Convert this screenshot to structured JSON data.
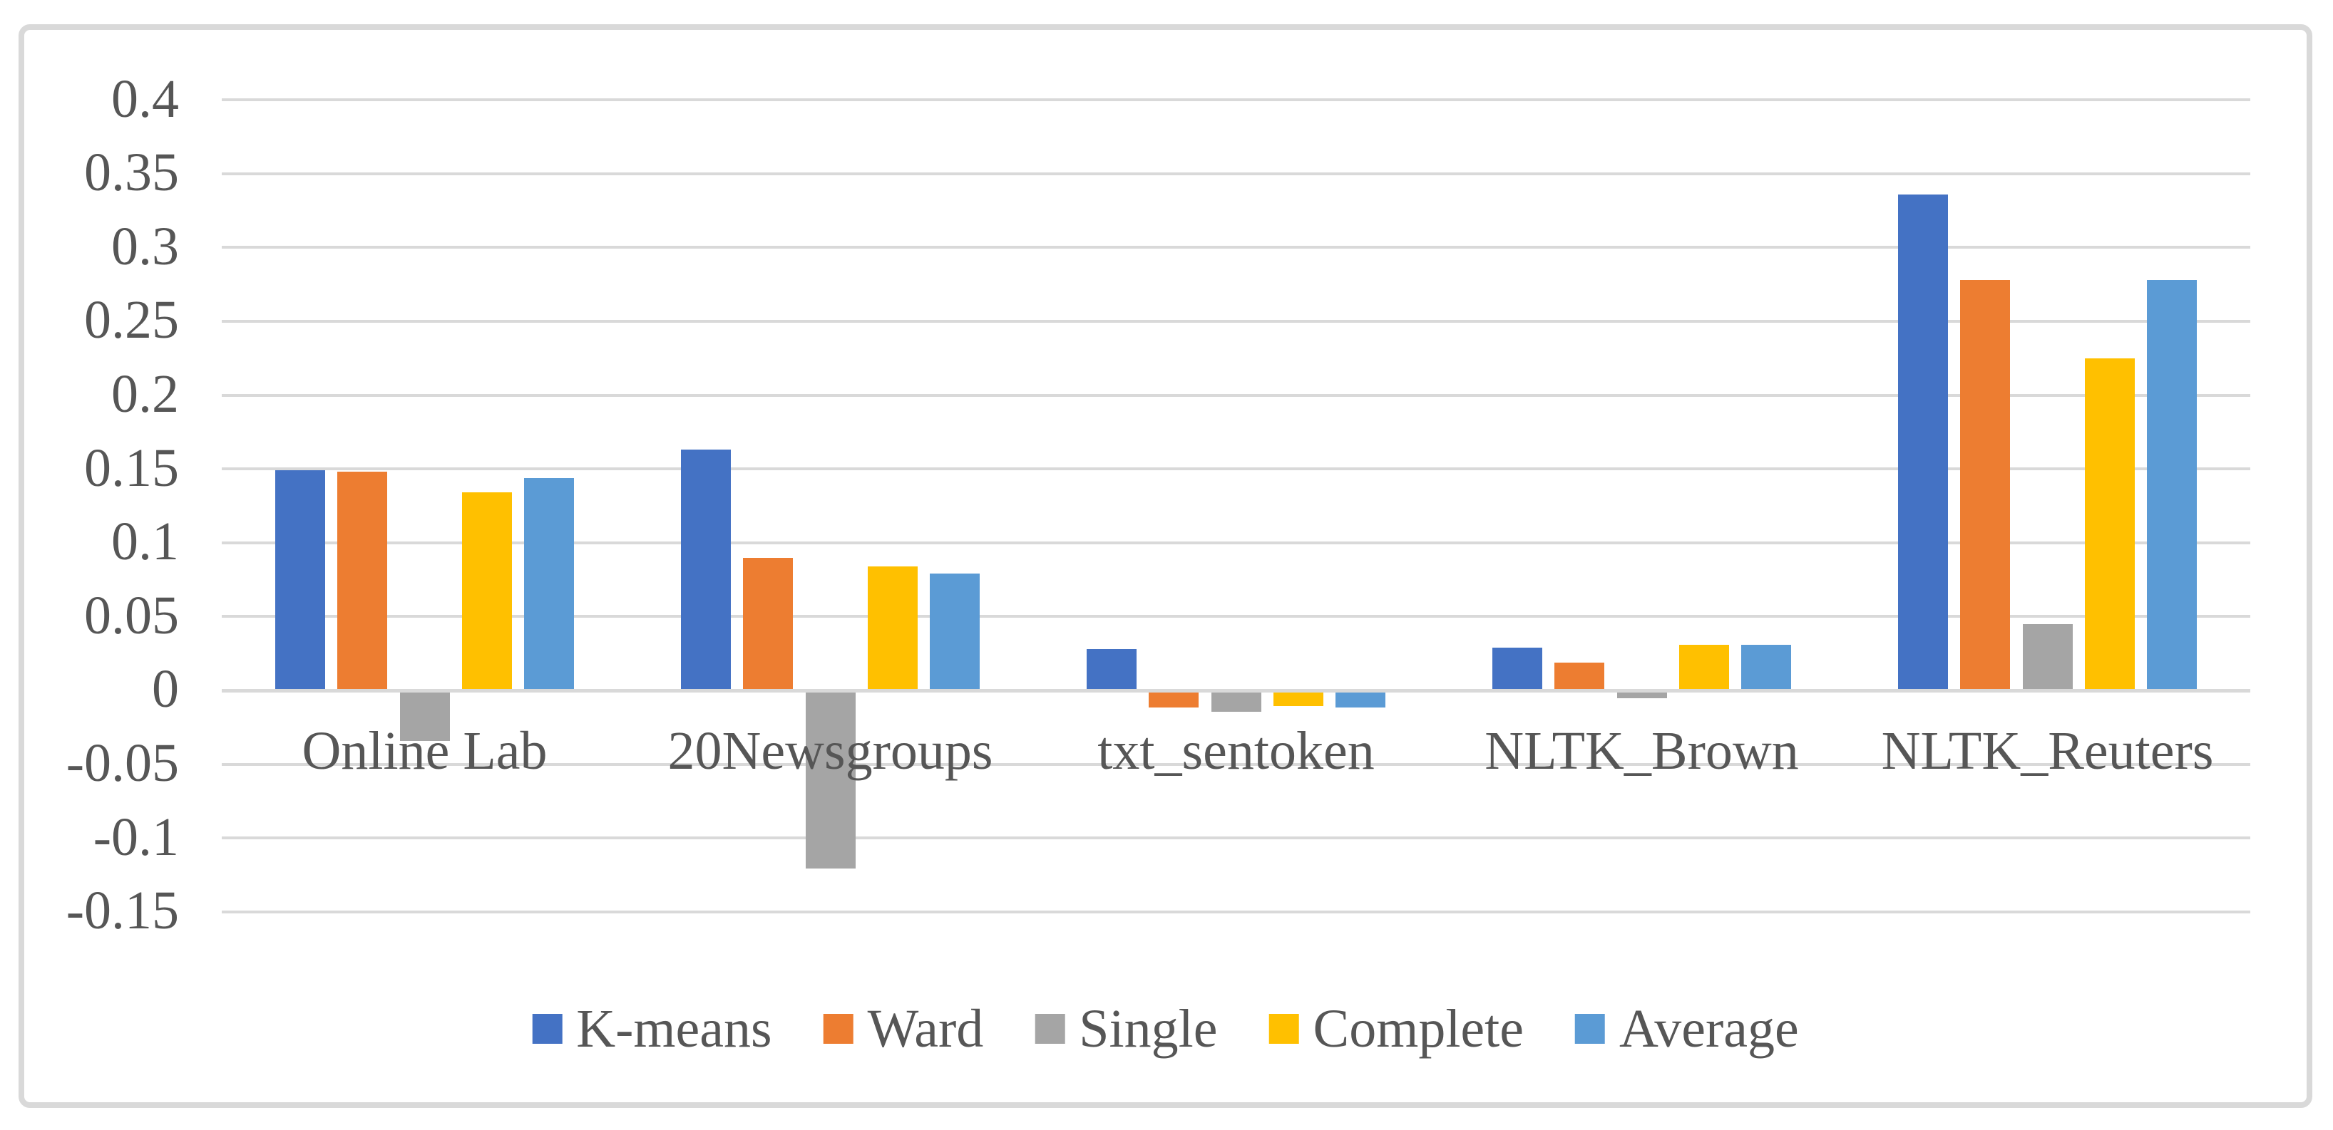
{
  "chart_data": {
    "type": "bar",
    "title": "",
    "xlabel": "",
    "ylabel": "",
    "categories": [
      "Online Lab",
      "20Newsgroups",
      "txt_sentoken",
      "NLTK_Brown",
      "NLTK_Reuters"
    ],
    "series": [
      {
        "name": "K-means",
        "color": "#4472C4",
        "values": [
          0.149,
          0.163,
          0.028,
          0.029,
          0.336
        ]
      },
      {
        "name": "Ward",
        "color": "#ED7D31",
        "values": [
          0.148,
          0.09,
          -0.011,
          0.019,
          0.278
        ]
      },
      {
        "name": "Single",
        "color": "#A5A5A5",
        "values": [
          -0.034,
          -0.12,
          -0.014,
          -0.005,
          0.045
        ]
      },
      {
        "name": "Complete",
        "color": "#FFC000",
        "values": [
          0.134,
          0.084,
          -0.01,
          0.031,
          0.225
        ]
      },
      {
        "name": "Average",
        "color": "#5B9BD5",
        "values": [
          0.144,
          0.079,
          -0.011,
          0.031,
          0.278
        ]
      }
    ],
    "y_axis": {
      "min": -0.15,
      "max": 0.4,
      "step": 0.05,
      "tick_labels": [
        "0.4",
        "0.35",
        "0.3",
        "0.25",
        "0.2",
        "0.15",
        "0.1",
        "0.05",
        "0",
        "-0.05",
        "-0.1",
        "-0.15"
      ]
    },
    "legend_position": "bottom",
    "grid": true,
    "styles": {
      "text_color": "#565656",
      "gridline_color": "#D9D9D9",
      "zero_line_color": "#D9D9D9",
      "frame_border_color": "#D9D9D9",
      "background": "#FFFFFF"
    }
  }
}
